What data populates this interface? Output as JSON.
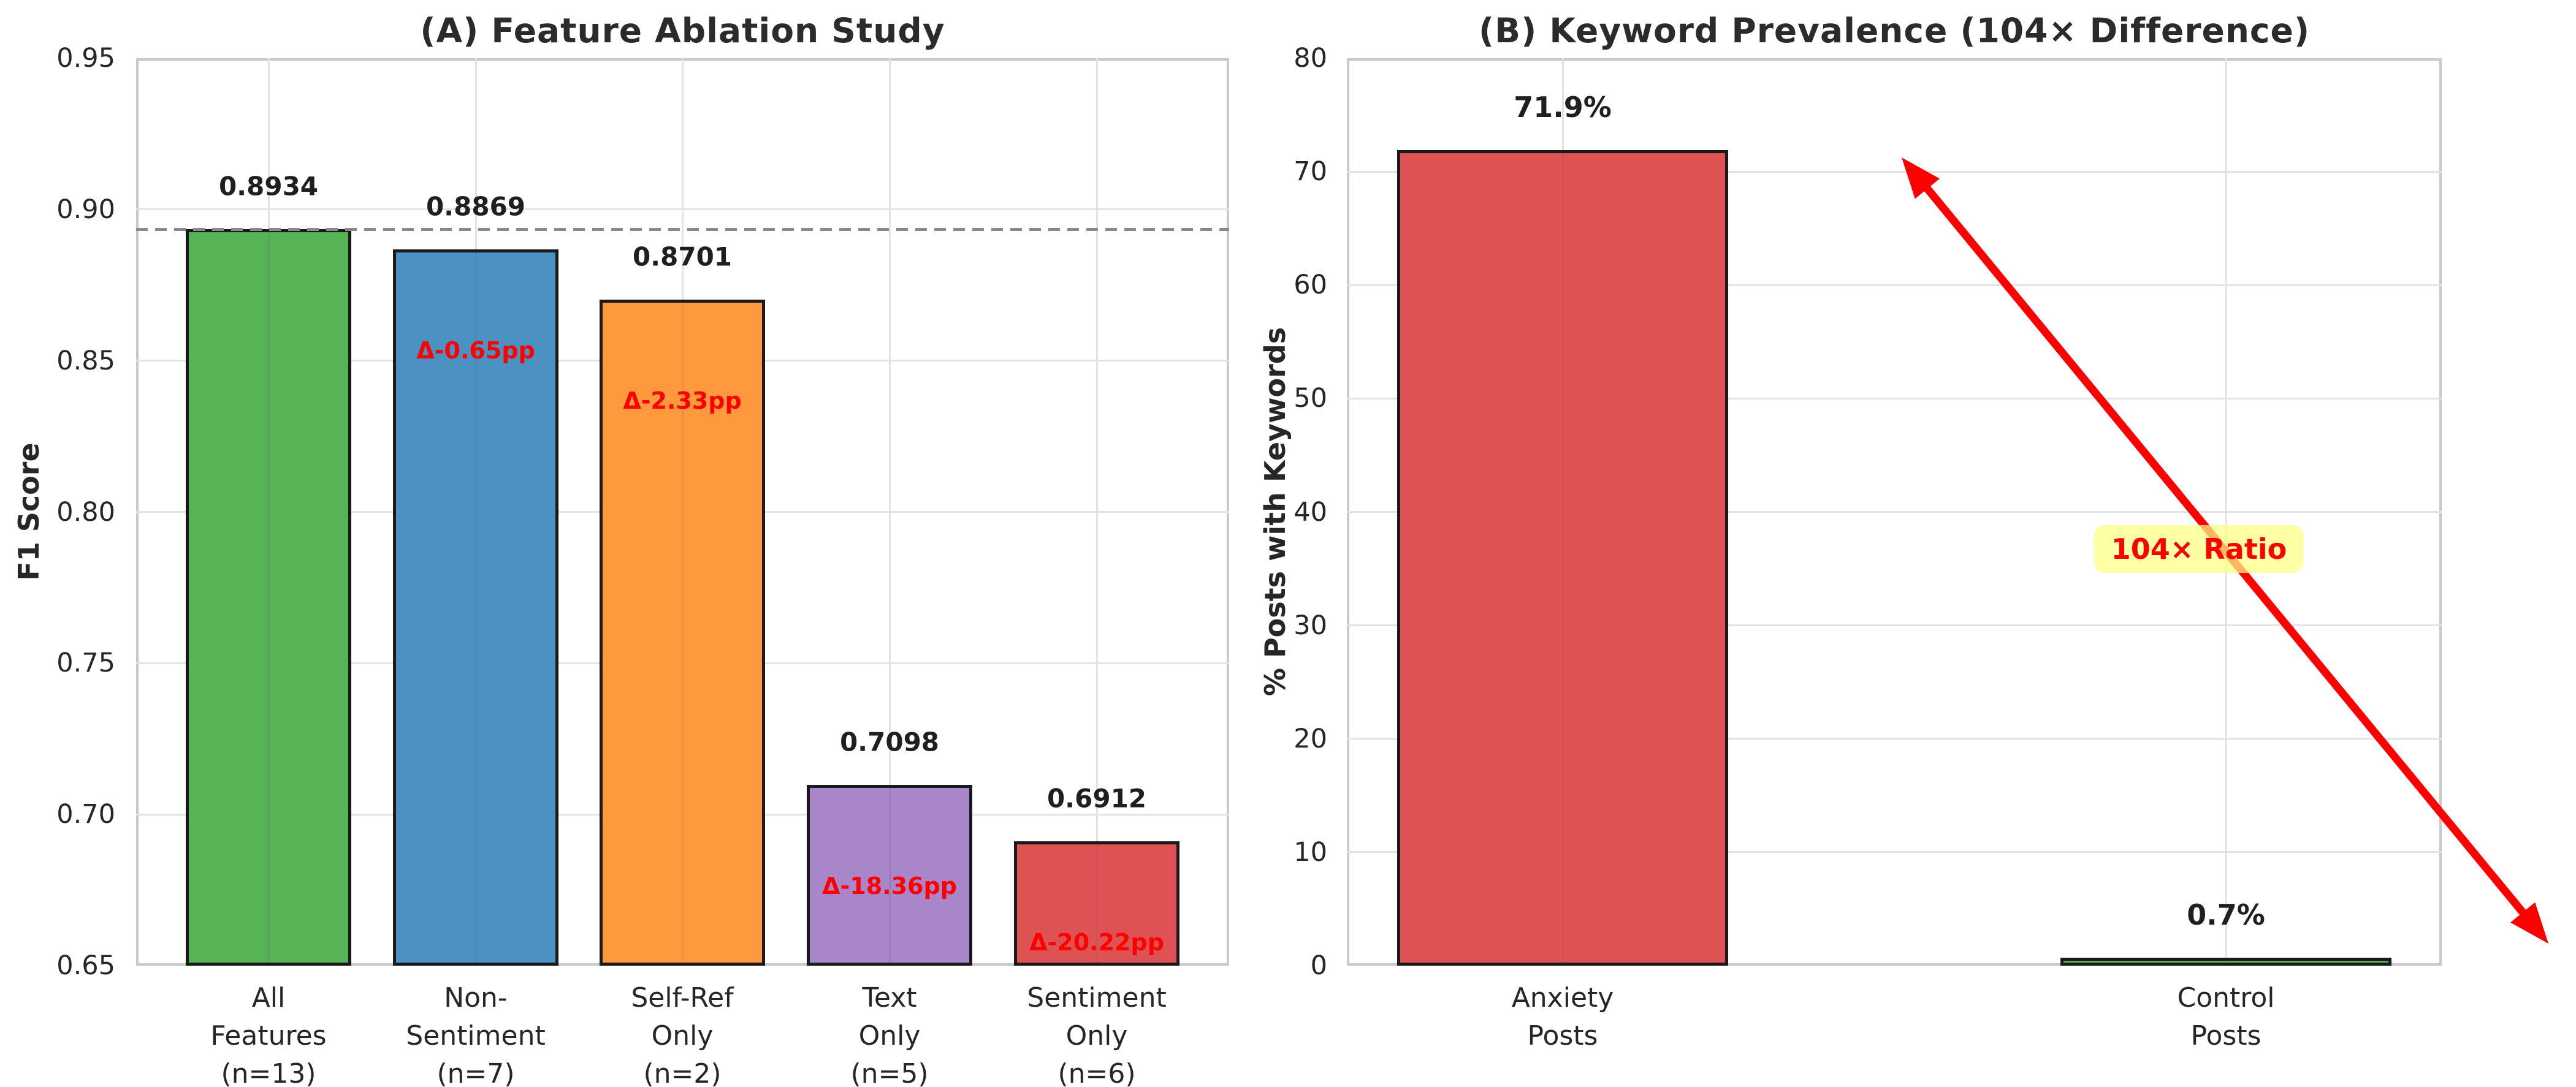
{
  "figure": {
    "background": "#ffffff"
  },
  "chart_data": [
    {
      "type": "bar",
      "panel": "A",
      "title": "(A) Feature Ablation Study",
      "ylabel": "F1 Score",
      "ylim": [
        0.65,
        0.95
      ],
      "yticks": [
        0.65,
        0.7,
        0.75,
        0.8,
        0.85,
        0.9,
        0.95
      ],
      "ytick_labels": [
        "0.65",
        "0.70",
        "0.75",
        "0.80",
        "0.85",
        "0.90",
        "0.95"
      ],
      "categories": [
        [
          "All",
          "Features",
          "(n=13)"
        ],
        [
          "Non-",
          "Sentiment",
          "(n=7)"
        ],
        [
          "Self-Ref",
          "Only",
          "(n=2)"
        ],
        [
          "Text",
          "Only",
          "(n=5)"
        ],
        [
          "Sentiment",
          "Only",
          "(n=6)"
        ]
      ],
      "values": [
        0.8934,
        0.8869,
        0.8701,
        0.7098,
        0.6912
      ],
      "value_labels": [
        "0.8934",
        "0.8869",
        "0.8701",
        "0.7098",
        "0.6912"
      ],
      "delta_labels": [
        null,
        "Δ-0.65pp",
        "Δ-2.33pp",
        "Δ-18.36pp",
        "Δ-20.22pp"
      ],
      "bar_colors": [
        "#56b356",
        "#4b92c3",
        "#ff993e",
        "#a985ca",
        "#de5253"
      ],
      "bar_edge_color": "#1a1a1a",
      "grid": true,
      "grid_color": "#e3e3e3",
      "reference_line": {
        "value": 0.8934,
        "style": "dashed",
        "color": "#8a8a8a"
      }
    },
    {
      "type": "bar",
      "panel": "B",
      "title": "(B) Keyword Prevalence (104× Difference)",
      "ylabel": "% Posts with Keywords",
      "ylim": [
        0,
        80
      ],
      "yticks": [
        0,
        10,
        20,
        30,
        40,
        50,
        60,
        70,
        80
      ],
      "ytick_labels": [
        "0",
        "10",
        "20",
        "30",
        "40",
        "50",
        "60",
        "70",
        "80"
      ],
      "categories": [
        [
          "Anxiety",
          "Posts"
        ],
        [
          "Control",
          "Posts"
        ]
      ],
      "values": [
        71.9,
        0.7
      ],
      "value_labels": [
        "71.9%",
        "0.7%"
      ],
      "delta_labels": [
        null,
        null
      ],
      "bar_colors": [
        "#de5253",
        "#56b356"
      ],
      "bar_edge_color": "#1a1a1a",
      "grid": true,
      "grid_color": "#e3e3e3",
      "annotation": {
        "text": "104× Ratio",
        "text_color": "#ff0000",
        "bg_color": "rgba(255,255,130,0.72)",
        "arrow_color": "#ff0000"
      }
    }
  ]
}
